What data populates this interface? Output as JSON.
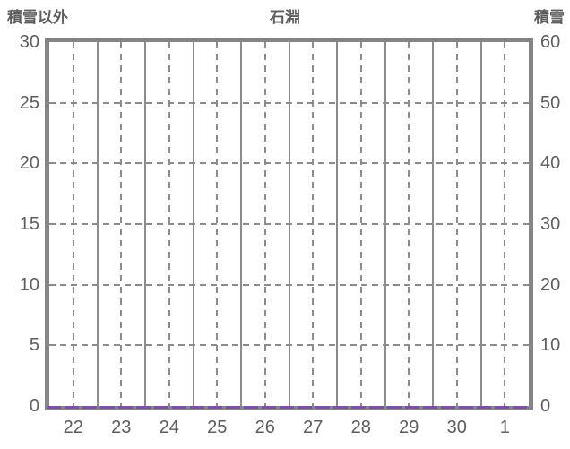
{
  "colors": {
    "background": "#ffffff",
    "border": "#858585",
    "grid": "#8c8c8c",
    "text": "#5d5d5d",
    "series_purple": "#7a51a5"
  },
  "chart_data": {
    "type": "line",
    "title": "石淵",
    "left_axis": {
      "label": "積雪以外",
      "ticks": [
        "30",
        "25",
        "20",
        "15",
        "10",
        "5",
        "0"
      ],
      "range": [
        0,
        30
      ]
    },
    "right_axis": {
      "label": "積雪",
      "ticks": [
        "60",
        "50",
        "40",
        "30",
        "20",
        "10",
        "0"
      ],
      "range": [
        0,
        60
      ]
    },
    "categories": [
      "22",
      "23",
      "24",
      "25",
      "26",
      "27",
      "28",
      "29",
      "30",
      "1"
    ],
    "series": [
      {
        "name": "purple-dashed-series",
        "color": "#7a51a5",
        "style": "dashed",
        "axis": "left",
        "values": [
          0,
          0,
          0,
          0,
          0,
          0,
          0,
          0,
          0,
          0
        ]
      }
    ],
    "grid": {
      "vertical_solid_at_day_boundaries": true,
      "vertical_dashed_at_day_centers": true,
      "horizontal_dashed_step_left_axis": 5,
      "legend": "none"
    }
  }
}
